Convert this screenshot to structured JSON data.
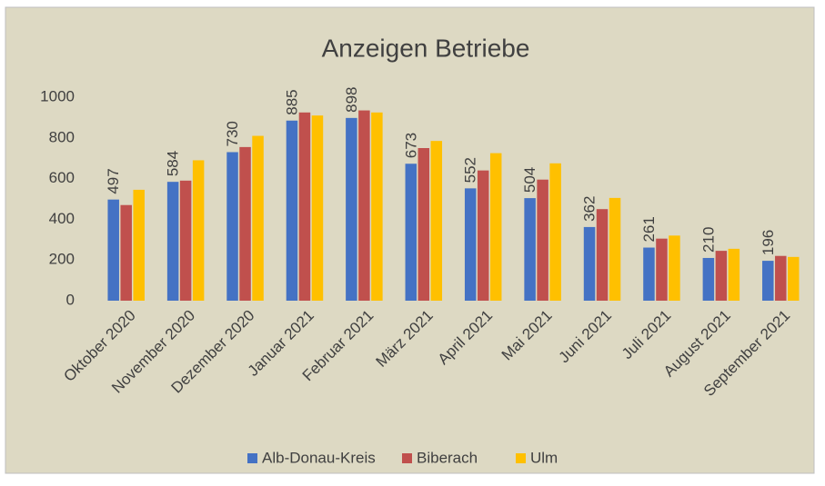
{
  "chart_data": {
    "type": "bar",
    "title": "Anzeigen Betriebe",
    "categories": [
      "Oktober 2020",
      "November 2020",
      "Dezember 2020",
      "Januar 2021",
      "Februar 2021",
      "März 2021",
      "April 2021",
      "Mai 2021",
      "Juni 2021",
      "Juli 2021",
      "August 2021",
      "September 2021"
    ],
    "series": [
      {
        "name": "Alb-Donau-Kreis",
        "color": "#4472c4",
        "values": [
          497,
          584,
          730,
          885,
          898,
          673,
          552,
          504,
          362,
          261,
          210,
          196
        ],
        "show_labels": true
      },
      {
        "name": "Biberach",
        "color": "#c0504d",
        "values": [
          470,
          590,
          755,
          925,
          935,
          750,
          640,
          595,
          450,
          305,
          245,
          220
        ],
        "show_labels": false
      },
      {
        "name": "Ulm",
        "color": "#ffc000",
        "values": [
          545,
          690,
          810,
          910,
          925,
          785,
          725,
          675,
          505,
          320,
          255,
          215
        ],
        "show_labels": false
      }
    ],
    "ylim": [
      0,
      1000
    ],
    "yticks": [
      0,
      200,
      400,
      600,
      800,
      1000
    ],
    "grid": false,
    "legend": "bottom"
  }
}
